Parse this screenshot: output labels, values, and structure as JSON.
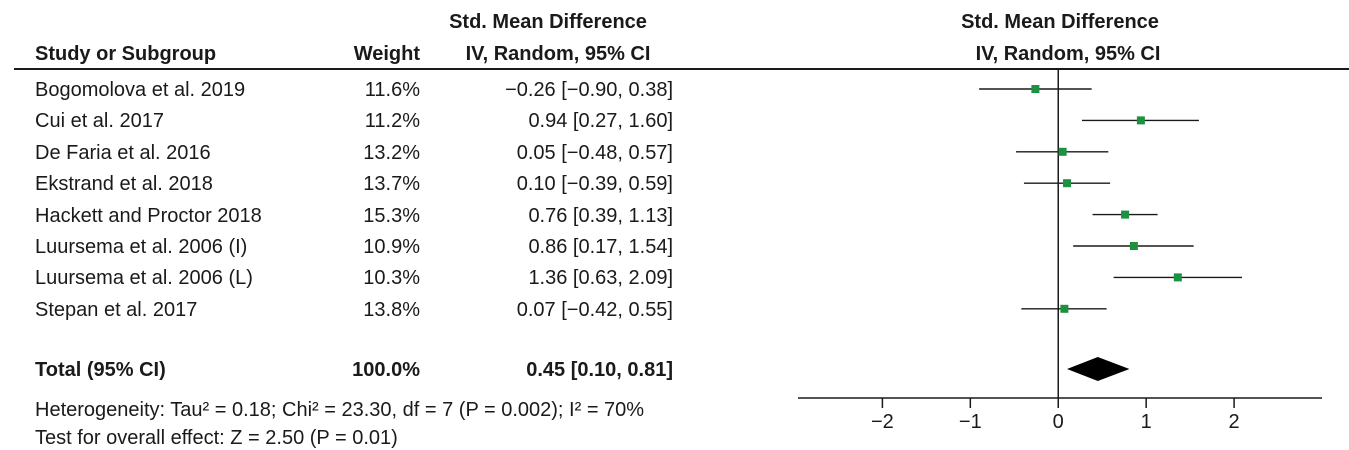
{
  "chart_data": {
    "type": "forest",
    "header": {
      "col_study": "Study or Subgroup",
      "col_weight": "Weight",
      "col_effect_line1": "Std. Mean Difference",
      "col_effect_line2": "IV, Random, 95% CI",
      "plot_line1": "Std. Mean Difference",
      "plot_line2": "IV, Random, 95% CI"
    },
    "studies": [
      {
        "name": "Bogomolova et al. 2019",
        "weight": "11.6%",
        "label": "−0.26 [−0.90, 0.38]",
        "est": -0.26,
        "lo": -0.9,
        "hi": 0.38
      },
      {
        "name": "Cui et al. 2017",
        "weight": "11.2%",
        "label": "0.94 [0.27, 1.60]",
        "est": 0.94,
        "lo": 0.27,
        "hi": 1.6
      },
      {
        "name": "De Faria et al. 2016",
        "weight": "13.2%",
        "label": "0.05 [−0.48, 0.57]",
        "est": 0.05,
        "lo": -0.48,
        "hi": 0.57
      },
      {
        "name": "Ekstrand et al. 2018",
        "weight": "13.7%",
        "label": "0.10 [−0.39, 0.59]",
        "est": 0.1,
        "lo": -0.39,
        "hi": 0.59
      },
      {
        "name": "Hackett and Proctor 2018",
        "weight": "15.3%",
        "label": "0.76 [0.39, 1.13]",
        "est": 0.76,
        "lo": 0.39,
        "hi": 1.13
      },
      {
        "name": "Luursema et al. 2006 (I)",
        "weight": "10.9%",
        "label": "0.86 [0.17, 1.54]",
        "est": 0.86,
        "lo": 0.17,
        "hi": 1.54
      },
      {
        "name": "Luursema et al. 2006 (L)",
        "weight": "10.3%",
        "label": "1.36 [0.63, 2.09]",
        "est": 1.36,
        "lo": 0.63,
        "hi": 2.09
      },
      {
        "name": "Stepan et al. 2017",
        "weight": "13.8%",
        "label": "0.07 [−0.42, 0.55]",
        "est": 0.07,
        "lo": -0.42,
        "hi": 0.55
      }
    ],
    "total": {
      "name": "Total (95% CI)",
      "weight": "100.0%",
      "label": "0.45 [0.10, 0.81]",
      "est": 0.45,
      "lo": 0.1,
      "hi": 0.81
    },
    "heterogeneity": "Heterogeneity: Tau² = 0.18; Chi² = 23.30, df = 7 (P = 0.002); I² = 70%",
    "overall_effect": "Test for overall effect: Z = 2.50 (P = 0.01)",
    "x_ticks": [
      -2,
      -1,
      0,
      1,
      2
    ],
    "x_tick_labels": [
      "−2",
      "−1",
      "0",
      "1",
      "2"
    ],
    "xlim": [
      -2.96,
      3.0
    ],
    "colors": {
      "marker": "#1e9140",
      "diamond": "#000000",
      "line": "#1a1a1a"
    }
  }
}
